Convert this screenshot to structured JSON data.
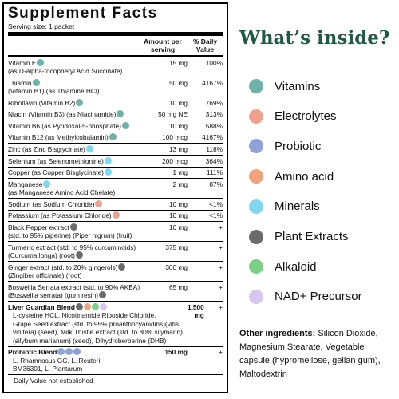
{
  "facts": {
    "title": "Supplement Facts",
    "serving": "Serving size: 1 packet",
    "header_amount": "Amount per serving",
    "header_dv": "% Daily Value",
    "rows": [
      {
        "lines": [
          "Vitamin E",
          "(as D-alpha-tocopheryl Acid Succinate)"
        ],
        "amount": "15 mg",
        "dv": "100%",
        "dots": [
          "#6fb3a8"
        ]
      },
      {
        "lines": [
          "Thiamin",
          "(Vitamin B1) (as Thiamine HCl)"
        ],
        "amount": "50 mg",
        "dv": "4167%",
        "dots": [
          "#6fb3a8"
        ]
      },
      {
        "lines": [
          "Riboflavin (Vitamin B2)"
        ],
        "amount": "10 mg",
        "dv": "769%",
        "dots": [
          "#6fb3a8"
        ]
      },
      {
        "lines": [
          "Niacin (Vitamin B3) (as Niacinamide)"
        ],
        "amount": "50 mg NE",
        "dv": "313%",
        "dots": [
          "#6fb3a8"
        ]
      },
      {
        "lines": [
          "Vitamin B6 (as Pyridoxal-5-phosphate)"
        ],
        "amount": "10 mg",
        "dv": "588%",
        "dots": [
          "#6fb3a8"
        ]
      },
      {
        "lines": [
          "Vitamin B12 (as Methylcobalamin)"
        ],
        "amount": "100 mcg",
        "dv": "4167%",
        "dots": [
          "#6fb3a8"
        ]
      },
      {
        "lines": [
          "Zinc (as Zinc Bisglycinate)"
        ],
        "amount": "13 mg",
        "dv": "118%",
        "dots": [
          "#7fd8ef"
        ]
      },
      {
        "lines": [
          "Selenium (as Selenomethionine)"
        ],
        "amount": "200 mcg",
        "dv": "364%",
        "dots": [
          "#7fd8ef"
        ]
      },
      {
        "lines": [
          "Copper (as Copper Bisglycinate)"
        ],
        "amount": "1 mg",
        "dv": "111%",
        "dots": [
          "#7fd8ef"
        ]
      },
      {
        "lines": [
          "Manganese",
          "(as Manganese Amino Acid Chelate)"
        ],
        "amount": "2 mg",
        "dv": "87%",
        "dots": [
          "#7fd8ef"
        ]
      },
      {
        "lines": [
          "Sodium (as Sodium Chloride)"
        ],
        "amount": "10 mg",
        "dv": "<1%",
        "dots": [
          "#f0a08e"
        ]
      },
      {
        "lines": [
          "Potassium (as Potassium Chloride)"
        ],
        "amount": "10 mg",
        "dv": "<1%",
        "dots": [
          "#f0a08e"
        ]
      },
      {
        "lines": [
          "Black Pepper extract",
          "(std. to 95% piperine) (Piper nigrum) (fruit)"
        ],
        "amount": "10 mg",
        "dv": "+",
        "dots": [
          "#6b6b6b"
        ]
      },
      {
        "lines": [
          "Turmeric extract (std. to 95% curcuminoids)",
          "(Curcuma longa) (root)"
        ],
        "amount": "375 mg",
        "dv": "+",
        "dots": [
          "#6b6b6b"
        ]
      },
      {
        "lines": [
          "Ginger extract (std. to 20% gingerols)",
          "(Zingiber officinale) (root)"
        ],
        "amount": "300 mg",
        "dv": "+",
        "dots": [
          "#6b6b6b"
        ]
      },
      {
        "lines": [
          "Boswellia Serrata extract (std. to 90% AKBA)",
          "(Boswellia serrata) (gum resin)"
        ],
        "amount": "65 mg",
        "dv": "+",
        "dots": [
          "#6b6b6b"
        ]
      },
      {
        "lines": [
          "Liver Guardian Blend",
          "L-cysteine HCL, Nicotinamide Riboside Chloride,",
          "Grape Seed extract (std. to 95% proanthocyanidins)(vitis",
          "vinifera) (seed), Milk Thistle extract (std. to 80% silymarin)",
          "(silybum marianum) (seed), Dihydroberberine (DHB)"
        ],
        "amount": "1,500 mg",
        "dv": "+",
        "bold": true,
        "dots": [
          "#6b6b6b",
          "#f2a27c",
          "#7ccf86",
          "#d7c7f0"
        ]
      },
      {
        "lines": [
          "Probiotic Blend",
          "L. Rhamnosus GG, L. Reuteri",
          "BM36301, L. Plantarum"
        ],
        "amount": "150 mg",
        "dv": "+",
        "bold": true,
        "dots": [
          "#8fa3d6",
          "#8fa3d6",
          "#8fa3d6"
        ]
      }
    ],
    "footnote": "+ Daily Value not established"
  },
  "legend": {
    "title": "What’s inside?",
    "items": [
      {
        "label": "Vitamins",
        "color": "#6fb3a8"
      },
      {
        "label": "Electrolytes",
        "color": "#f0a08e"
      },
      {
        "label": "Probiotic",
        "color": "#8fa3d6"
      },
      {
        "label": "Amino acid",
        "color": "#f2a27c"
      },
      {
        "label": "Minerals",
        "color": "#7fd8ef"
      },
      {
        "label": "Plant Extracts",
        "color": "#6b6b6b"
      },
      {
        "label": "Alkaloid",
        "color": "#7ccf86"
      },
      {
        "label": "NAD+ Precursor",
        "color": "#d7c7f0"
      }
    ]
  },
  "other": {
    "label": "Other ingredients:",
    "text": "Silicon Dioxide, Magnesium Stearate, Vegetable capsule (hypromellose, gellan gum), Maltodextrin"
  }
}
